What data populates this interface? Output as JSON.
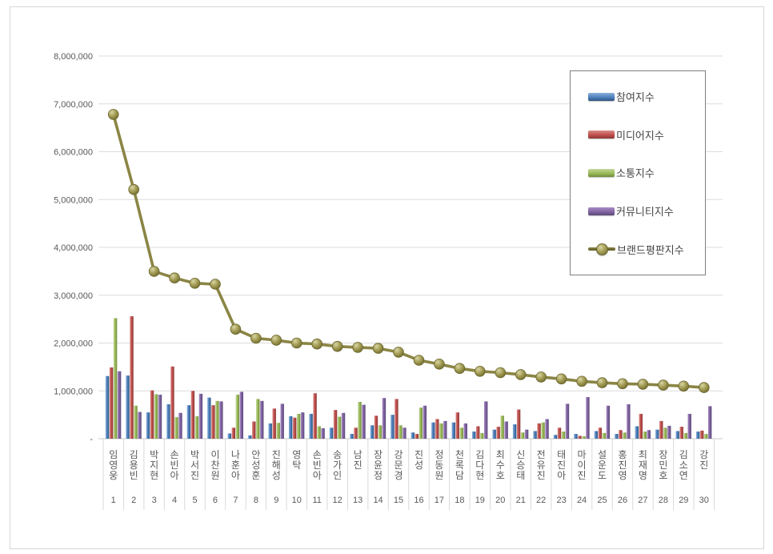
{
  "page": {
    "background": "#ffffff",
    "frame_border_color": "#d6d6d6"
  },
  "legend": {
    "background": "#ffffff",
    "border_color": "#7f7f7f",
    "position": "upper-right"
  },
  "chart_data": {
    "type": "bar+line",
    "title": "",
    "xlabel": "",
    "ylabel": "",
    "grid": true,
    "ylim": [
      0,
      8000000
    ],
    "ytick_labels_top_to_bottom": [
      "8,000,000",
      "7,000,000",
      "6,000,000",
      "5,000,000",
      "4,000,000",
      "3,000,000",
      "2,000,000",
      "1,000,000",
      "-"
    ],
    "categories": [
      "임영웅",
      "김용빈",
      "박지현",
      "손빈아",
      "박서진",
      "이찬원",
      "나훈아",
      "안성훈",
      "진해성",
      "영탁",
      "손빈아",
      "송가인",
      "남진",
      "장윤정",
      "강문경",
      "진성",
      "정동원",
      "천록담",
      "김다현",
      "최수호",
      "신승태",
      "전유진",
      "태진아",
      "마이진",
      "설운도",
      "홍진영",
      "최재명",
      "장민호",
      "김소연",
      "강진"
    ],
    "rank_labels": [
      "1",
      "2",
      "3",
      "4",
      "5",
      "6",
      "7",
      "8",
      "9",
      "10",
      "11",
      "12",
      "13",
      "14",
      "15",
      "16",
      "17",
      "18",
      "19",
      "20",
      "21",
      "22",
      "23",
      "24",
      "25",
      "26",
      "27",
      "28",
      "29",
      "30"
    ],
    "series": [
      {
        "name": "참여지수",
        "type": "bar",
        "color": "#4F81BD",
        "light": "#89AFD9",
        "dark": "#2E5480",
        "values": [
          1310000,
          1320000,
          550000,
          720000,
          700000,
          860000,
          110000,
          70000,
          320000,
          470000,
          520000,
          230000,
          100000,
          280000,
          500000,
          130000,
          340000,
          340000,
          150000,
          190000,
          300000,
          160000,
          80000,
          100000,
          160000,
          100000,
          260000,
          190000,
          160000,
          150000
        ]
      },
      {
        "name": "미디어지수",
        "type": "bar",
        "color": "#C0504D",
        "light": "#DA8D8B",
        "dark": "#8C3836",
        "values": [
          1490000,
          2560000,
          1010000,
          1510000,
          1000000,
          700000,
          230000,
          360000,
          630000,
          440000,
          950000,
          600000,
          230000,
          480000,
          830000,
          100000,
          410000,
          550000,
          260000,
          250000,
          610000,
          320000,
          230000,
          60000,
          230000,
          180000,
          520000,
          370000,
          250000,
          170000
        ]
      },
      {
        "name": "소통지수",
        "type": "bar",
        "color": "#9BBB59",
        "light": "#C3D69B",
        "dark": "#6F8C3B",
        "values": [
          2520000,
          690000,
          930000,
          450000,
          470000,
          790000,
          920000,
          830000,
          330000,
          520000,
          260000,
          460000,
          770000,
          280000,
          280000,
          650000,
          320000,
          230000,
          120000,
          480000,
          130000,
          340000,
          150000,
          50000,
          120000,
          130000,
          150000,
          230000,
          120000,
          100000
        ]
      },
      {
        "name": "커뮤니티지수",
        "type": "bar",
        "color": "#8064A2",
        "light": "#A98BC4",
        "dark": "#5C487A",
        "values": [
          1410000,
          560000,
          920000,
          540000,
          940000,
          780000,
          980000,
          790000,
          730000,
          550000,
          220000,
          540000,
          710000,
          850000,
          230000,
          690000,
          370000,
          320000,
          780000,
          360000,
          190000,
          410000,
          730000,
          870000,
          690000,
          720000,
          180000,
          270000,
          520000,
          680000
        ]
      },
      {
        "name": "브랜드평판지수",
        "type": "line",
        "color": "#8B8545",
        "light": "#D9D5A6",
        "dark": "#5E5926",
        "values": [
          6780000,
          5210000,
          3500000,
          3360000,
          3250000,
          3230000,
          2290000,
          2100000,
          2060000,
          2000000,
          1980000,
          1930000,
          1910000,
          1890000,
          1810000,
          1640000,
          1560000,
          1470000,
          1410000,
          1380000,
          1340000,
          1290000,
          1250000,
          1200000,
          1170000,
          1150000,
          1140000,
          1120000,
          1100000,
          1070000
        ]
      }
    ]
  }
}
